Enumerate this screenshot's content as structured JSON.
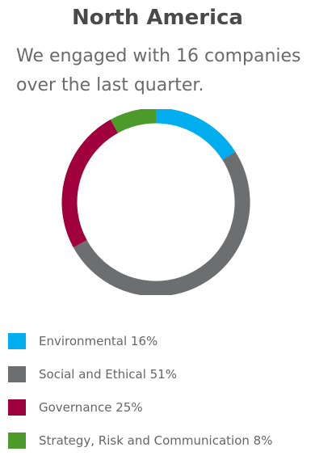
{
  "header": {
    "title": "North America",
    "subtitle": "We engaged with 16 companies over the last quarter."
  },
  "chart_data": {
    "type": "pie",
    "style": "donut",
    "start_angle_deg": 0,
    "direction": "clockwise",
    "categories": [
      "Environmental",
      "Social and Ethical",
      "Governance",
      "Strategy, Risk and Communication"
    ],
    "values": [
      16,
      51,
      25,
      8
    ],
    "colors": [
      "#00aeef",
      "#6d6e70",
      "#a0003c",
      "#4c9a2a"
    ],
    "legend_labels": [
      "Environmental 16%",
      "Social and Ethical 51%",
      "Governance 25%",
      "Strategy, Risk and Communication 8%"
    ],
    "legend_position": "bottom"
  }
}
